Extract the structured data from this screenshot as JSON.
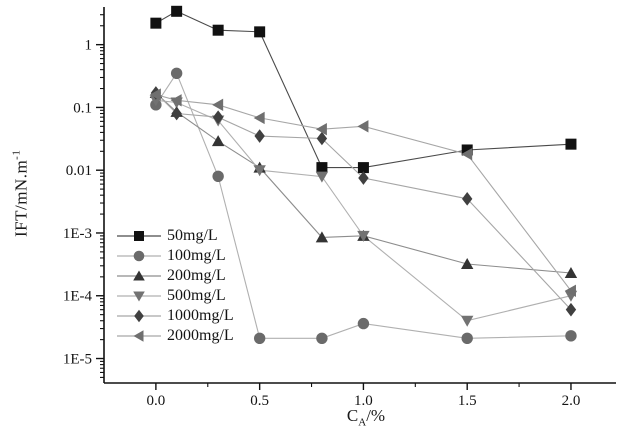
{
  "chart_data": {
    "type": "line",
    "title": "",
    "xlabel": {
      "prefix": "C",
      "sub": "A",
      "suffix": "/%"
    },
    "ylabel": {
      "text": "IFT/mN.m",
      "sup": "-1"
    },
    "x": [
      0.0,
      0.1,
      0.3,
      0.5,
      0.8,
      1.0,
      1.5,
      2.0
    ],
    "series": [
      {
        "name": "50mg/L",
        "marker": "square",
        "color": "#111111",
        "line_color": "#4a4a4a",
        "values": [
          2.2,
          3.4,
          1.7,
          1.6,
          0.011,
          0.011,
          0.021,
          0.026
        ]
      },
      {
        "name": "100mg/L",
        "marker": "circle",
        "color": "#6a6a6a",
        "line_color": "#b0b0b0",
        "values": [
          0.11,
          0.35,
          0.008,
          2.1e-05,
          2.1e-05,
          3.6e-05,
          2.1e-05,
          2.3e-05
        ]
      },
      {
        "name": "200mg/L",
        "marker": "triangle-up",
        "color": "#343434",
        "line_color": "#8d8d8d",
        "values": [
          0.17,
          0.085,
          0.029,
          0.011,
          0.00085,
          0.0009,
          0.00032,
          0.00023
        ]
      },
      {
        "name": "500mg/L",
        "marker": "triangle-down",
        "color": "#727272",
        "line_color": "#b0b0b0",
        "values": [
          0.13,
          0.12,
          0.062,
          0.01,
          0.0079,
          0.0009,
          4e-05,
          0.0001
        ]
      },
      {
        "name": "1000mg/L",
        "marker": "diamond",
        "color": "#404040",
        "line_color": "#a6a6a6",
        "values": [
          0.17,
          0.08,
          0.07,
          0.035,
          0.032,
          0.0075,
          0.0035,
          6e-05
        ]
      },
      {
        "name": "2000mg/L",
        "marker": "triangle-left",
        "color": "#6f6f6f",
        "line_color": "#a6a6a6",
        "values": [
          0.16,
          0.13,
          0.11,
          0.068,
          0.045,
          0.05,
          0.018,
          0.00012
        ]
      }
    ],
    "axes": {
      "x_min": -0.25,
      "x_max": 2.217,
      "y_scale": "log",
      "y_log_top": 0.6,
      "y_log_bottom": -5.39,
      "x_ticks": [
        {
          "label": "0.0",
          "value": 0.0
        },
        {
          "label": "0.5",
          "value": 0.5
        },
        {
          "label": "1.0",
          "value": 1.0
        },
        {
          "label": "1.5",
          "value": 1.5
        },
        {
          "label": "2.0",
          "value": 2.0
        }
      ],
      "x_minor_ticks": [
        0.25,
        0.75,
        1.25,
        1.75
      ],
      "y_ticks": [
        {
          "label": "1",
          "value": 1
        },
        {
          "label": "0.1",
          "value": 0.1
        },
        {
          "label": "0.01",
          "value": 0.01
        },
        {
          "label": "1E-3",
          "value": 0.001
        },
        {
          "label": "1E-4",
          "value": 0.0001
        },
        {
          "label": "1E-5",
          "value": 1e-05
        }
      ],
      "grid": false
    },
    "legend_position": "inside lower-left"
  }
}
